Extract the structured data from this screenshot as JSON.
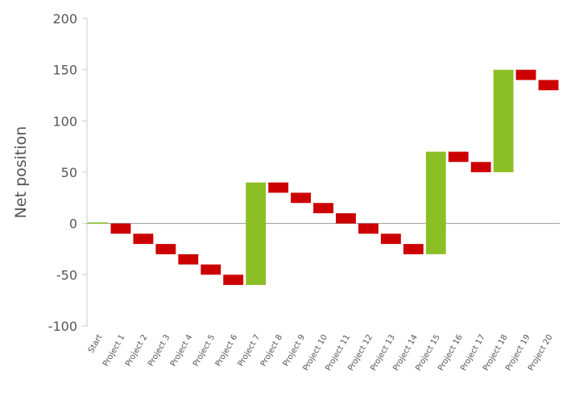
{
  "chart_data": {
    "type": "bar",
    "subtype": "waterfall",
    "title": "",
    "xlabel": "",
    "ylabel": "Net position",
    "ylim": [
      -100,
      200
    ],
    "yticks": [
      200,
      150,
      100,
      50,
      0,
      -50,
      -100
    ],
    "grid": false,
    "legend": "none",
    "colors": {
      "increase": "#8cbf26",
      "decrease": "#cc0000",
      "zero_line": "#999999",
      "axis": "#cccccc"
    },
    "categories": [
      "Start",
      "Project 1",
      "Project 2",
      "Project 3",
      "Project 4",
      "Project 5",
      "Project 6",
      "Project 7",
      "Project 8",
      "Project 9",
      "Project 10",
      "Project 11",
      "Project 12",
      "Project 13",
      "Project 14",
      "Project 15",
      "Project 16",
      "Project 17",
      "Project 18",
      "Project 19",
      "Project 20"
    ],
    "bars": [
      {
        "category": "Start",
        "start": 0,
        "end": 1,
        "kind": "increase"
      },
      {
        "category": "Project 1",
        "start": 0,
        "end": -10,
        "kind": "decrease"
      },
      {
        "category": "Project 2",
        "start": -10,
        "end": -20,
        "kind": "decrease"
      },
      {
        "category": "Project 3",
        "start": -20,
        "end": -30,
        "kind": "decrease"
      },
      {
        "category": "Project 4",
        "start": -30,
        "end": -40,
        "kind": "decrease"
      },
      {
        "category": "Project 5",
        "start": -40,
        "end": -50,
        "kind": "decrease"
      },
      {
        "category": "Project 6",
        "start": -50,
        "end": -60,
        "kind": "decrease"
      },
      {
        "category": "Project 7",
        "start": -60,
        "end": 40,
        "kind": "increase"
      },
      {
        "category": "Project 8",
        "start": 40,
        "end": 30,
        "kind": "decrease"
      },
      {
        "category": "Project 9",
        "start": 30,
        "end": 20,
        "kind": "decrease"
      },
      {
        "category": "Project 10",
        "start": 20,
        "end": 10,
        "kind": "decrease"
      },
      {
        "category": "Project 11",
        "start": 10,
        "end": 0,
        "kind": "decrease"
      },
      {
        "category": "Project 12",
        "start": 0,
        "end": -10,
        "kind": "decrease"
      },
      {
        "category": "Project 13",
        "start": -10,
        "end": -20,
        "kind": "decrease"
      },
      {
        "category": "Project 14",
        "start": -20,
        "end": -30,
        "kind": "decrease"
      },
      {
        "category": "Project 15",
        "start": -30,
        "end": 70,
        "kind": "increase"
      },
      {
        "category": "Project 16",
        "start": 70,
        "end": 60,
        "kind": "decrease"
      },
      {
        "category": "Project 17",
        "start": 60,
        "end": 50,
        "kind": "decrease"
      },
      {
        "category": "Project 18",
        "start": 50,
        "end": 150,
        "kind": "increase"
      },
      {
        "category": "Project 19",
        "start": 150,
        "end": 140,
        "kind": "decrease"
      },
      {
        "category": "Project 20",
        "start": 140,
        "end": 130,
        "kind": "decrease"
      }
    ]
  }
}
